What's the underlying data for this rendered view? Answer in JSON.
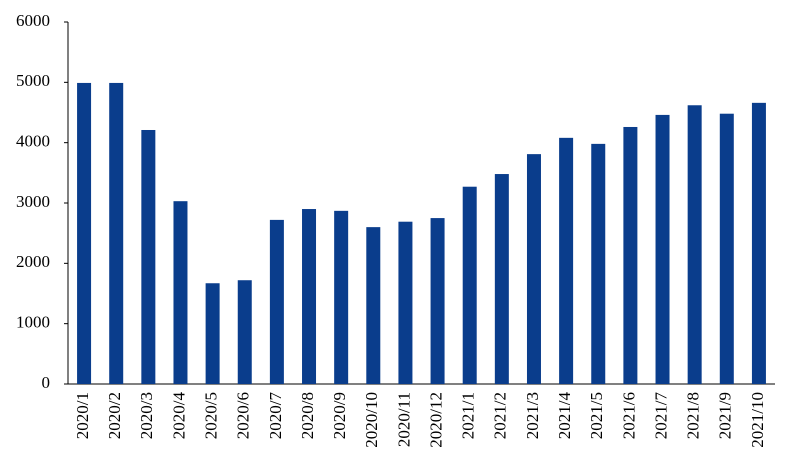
{
  "chart_data": {
    "type": "bar",
    "categories": [
      "2020/1",
      "2020/2",
      "2020/3",
      "2020/4",
      "2020/5",
      "2020/6",
      "2020/7",
      "2020/8",
      "2020/9",
      "2020/10",
      "2020/11",
      "2020/12",
      "2021/1",
      "2021/2",
      "2021/3",
      "2021/4",
      "2021/5",
      "2021/6",
      "2021/7",
      "2021/8",
      "2021/9",
      "2021/10"
    ],
    "values": [
      4990,
      4990,
      4210,
      3030,
      1670,
      1720,
      2720,
      2900,
      2870,
      2600,
      2690,
      2750,
      3270,
      3480,
      3810,
      4080,
      3980,
      4260,
      4460,
      4620,
      4480,
      4660
    ],
    "color": "#0a3d8c",
    "ylim": [
      0,
      6000
    ],
    "yticks": [
      0,
      1000,
      2000,
      3000,
      4000,
      5000,
      6000
    ],
    "grid": false
  }
}
